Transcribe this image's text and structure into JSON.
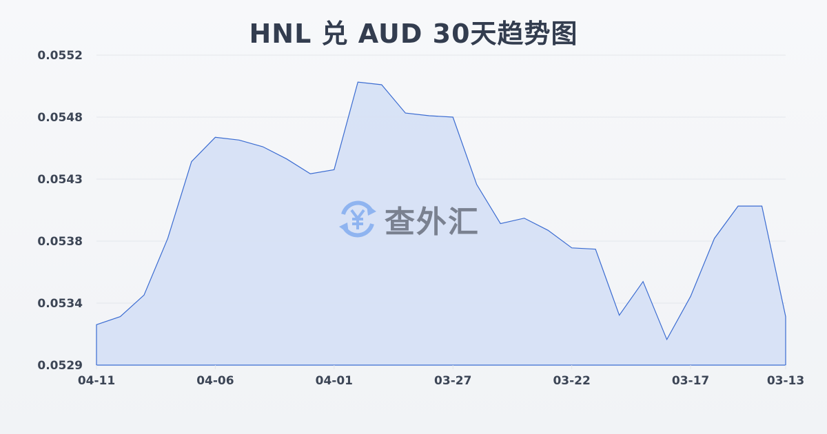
{
  "chart_data": {
    "type": "area",
    "title": "HNL 兑 AUD 30天趋势图",
    "xlabel": "",
    "ylabel": "",
    "x_tick_labels": [
      "04-11",
      "04-06",
      "04-01",
      "03-27",
      "03-22",
      "03-17",
      "03-13"
    ],
    "y_tick_labels": [
      "0.0552",
      "0.0548",
      "0.0543",
      "0.0538",
      "0.0534",
      "0.0529"
    ],
    "ylim": [
      0.0529,
      0.0552
    ],
    "x_order": "descending dates, 04-11 to 03-13, daily",
    "grid": true,
    "legend": "none",
    "values": [
      0.0532,
      0.05326,
      0.05342,
      0.05384,
      0.05441,
      0.05459,
      0.05457,
      0.05452,
      0.05443,
      0.05432,
      0.05435,
      0.055,
      0.05498,
      0.05477,
      0.05475,
      0.05474,
      0.05424,
      0.05395,
      0.05399,
      0.0539,
      0.05377,
      0.05376,
      0.05327,
      0.05352,
      0.05309,
      0.05341,
      0.05384,
      0.05408,
      0.05408,
      0.05326
    ],
    "colors": {
      "line": "#3a6bd1",
      "fill": "#d5e0f5",
      "grid": "#e3e6eb"
    }
  },
  "watermark": {
    "text": "查外汇",
    "icon": "yen-exchange-icon"
  }
}
